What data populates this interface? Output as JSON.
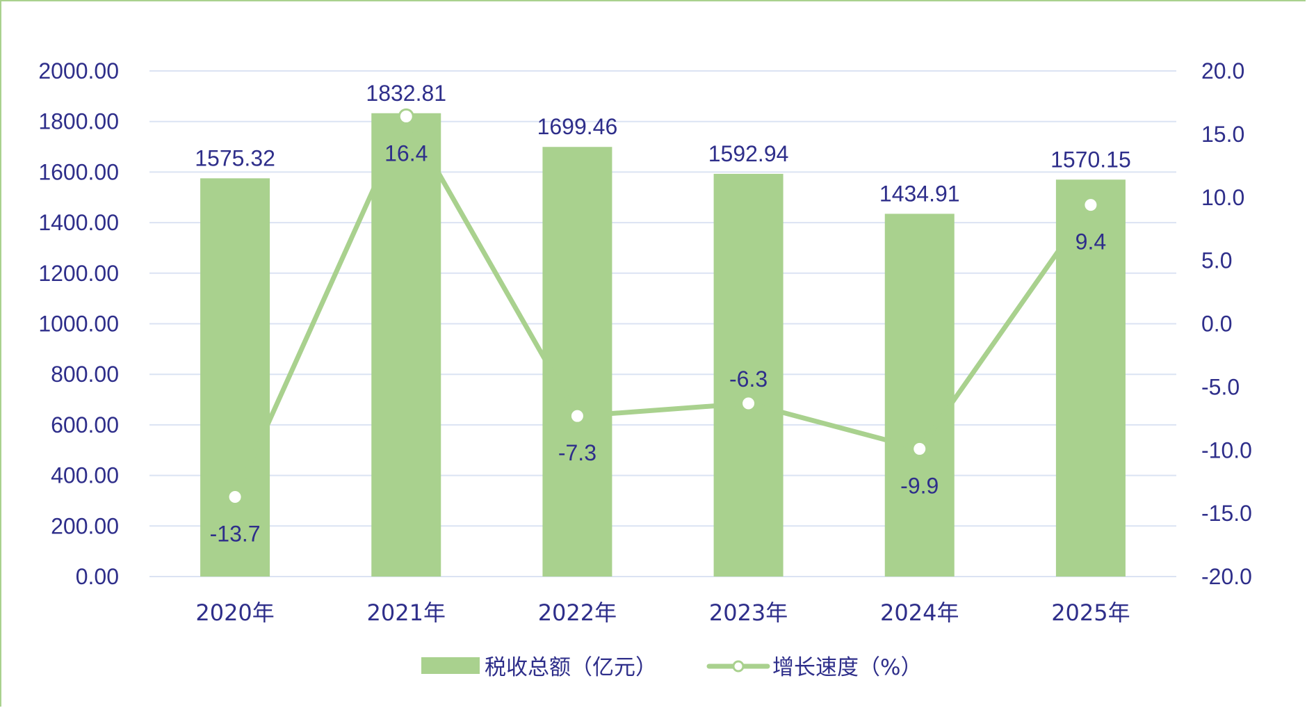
{
  "chart_data": {
    "type": "bar",
    "categories": [
      "2020年",
      "2021年",
      "2022年",
      "2023年",
      "2024年",
      "2025年"
    ],
    "series": [
      {
        "name": "税收总额（亿元）",
        "type": "bar",
        "axis": "left",
        "values": [
          1575.32,
          1832.81,
          1699.46,
          1592.94,
          1434.91,
          1570.15
        ],
        "labels": [
          "1575.32",
          "1832.81",
          "1699.46",
          "1592.94",
          "1434.91",
          "1570.15"
        ],
        "color": "#a9d18e"
      },
      {
        "name": "增长速度（%）",
        "type": "line",
        "axis": "right",
        "values": [
          -13.7,
          16.4,
          -7.3,
          -6.3,
          -9.9,
          9.4
        ],
        "labels": [
          "-13.7",
          "16.4",
          "-7.3",
          "-6.3",
          "-9.9",
          "9.4"
        ],
        "color": "#a9d18e"
      }
    ],
    "y_left": {
      "ylim": [
        0,
        2000
      ],
      "ticks": [
        "0.00",
        "200.00",
        "400.00",
        "600.00",
        "800.00",
        "1000.00",
        "1200.00",
        "1400.00",
        "1600.00",
        "1800.00",
        "2000.00"
      ]
    },
    "y_right": {
      "ylim": [
        -20,
        20
      ],
      "ticks": [
        "-20.0",
        "-15.0",
        "-10.0",
        "-5.0",
        "0.0",
        "5.0",
        "10.0",
        "15.0",
        "20.0"
      ]
    },
    "grid": true,
    "legend": "bottom"
  }
}
